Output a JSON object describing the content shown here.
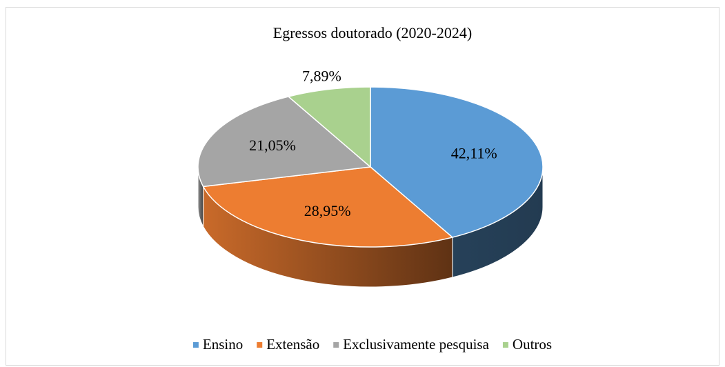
{
  "chart_data": {
    "type": "pie3d",
    "title": "Egressos doutorado (2020-2024)",
    "categories": [
      "Ensino",
      "Extensão",
      "Exclusivamente pesquisa",
      "Outros"
    ],
    "values": [
      42.11,
      28.95,
      21.05,
      7.89
    ],
    "value_labels": [
      "42,11%",
      "28,95%",
      "21,05%",
      "7,89%"
    ],
    "colors": [
      "#5b9bd5",
      "#ed7d31",
      "#a5a5a5",
      "#a9d18e"
    ],
    "legend": "bottom"
  }
}
